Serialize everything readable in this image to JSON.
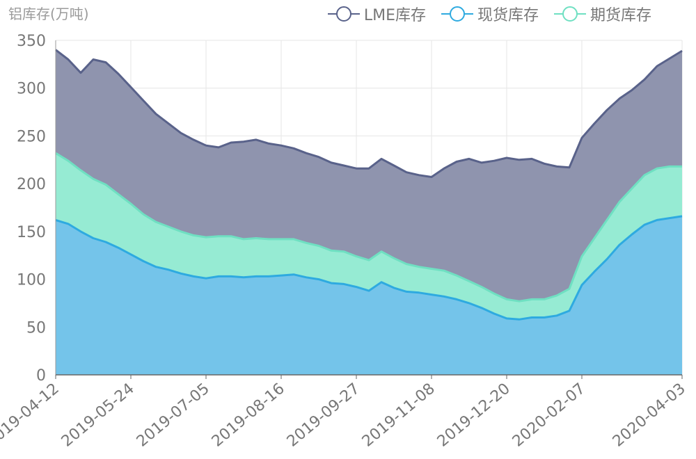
{
  "chart_data": {
    "type": "area",
    "ylabel": "铝库存(万吨)",
    "ylim": [
      0,
      350
    ],
    "yticks": [
      0,
      50,
      100,
      150,
      200,
      250,
      300,
      350
    ],
    "xticks": [
      "2019-04-12",
      "2019-05-24",
      "2019-07-05",
      "2019-08-16",
      "2019-09-27",
      "2019-11-08",
      "2019-12-20",
      "2020-02-07",
      "2020-04-03"
    ],
    "grid": true,
    "legend_position": "top-right",
    "colors": {
      "lme": "#59628a",
      "lme_fill": "#8f94ae",
      "spot": "#2eaae0",
      "spot_fill": "#74c4ea",
      "futures": "#6fe0c2",
      "futures_fill": "#96ebd3"
    },
    "x": [
      "2019-04-12",
      "2019-04-19",
      "2019-04-26",
      "2019-05-03",
      "2019-05-10",
      "2019-05-17",
      "2019-05-24",
      "2019-05-31",
      "2019-06-07",
      "2019-06-14",
      "2019-06-21",
      "2019-06-28",
      "2019-07-05",
      "2019-07-12",
      "2019-07-19",
      "2019-07-26",
      "2019-08-02",
      "2019-08-09",
      "2019-08-16",
      "2019-08-23",
      "2019-08-30",
      "2019-09-06",
      "2019-09-13",
      "2019-09-20",
      "2019-09-27",
      "2019-10-04",
      "2019-10-11",
      "2019-10-18",
      "2019-10-25",
      "2019-11-01",
      "2019-11-08",
      "2019-11-15",
      "2019-11-22",
      "2019-11-29",
      "2019-12-06",
      "2019-12-13",
      "2019-12-20",
      "2019-12-27",
      "2020-01-03",
      "2020-01-10",
      "2020-01-17",
      "2020-01-24",
      "2020-02-07",
      "2020-02-14",
      "2020-02-21",
      "2020-02-28",
      "2020-03-06",
      "2020-03-13",
      "2020-03-20",
      "2020-03-27",
      "2020-04-03"
    ],
    "series": [
      {
        "name": "LME库存",
        "key": "lme",
        "values": [
          340,
          330,
          316,
          330,
          327,
          315,
          301,
          287,
          273,
          263,
          253,
          246,
          240,
          238,
          243,
          244,
          246,
          242,
          240,
          237,
          232,
          228,
          222,
          219,
          216,
          216,
          226,
          219,
          212,
          209,
          207,
          216,
          223,
          226,
          222,
          224,
          227,
          225,
          226,
          221,
          218,
          217,
          248,
          263,
          277,
          289,
          298,
          309,
          323,
          331,
          339
        ]
      },
      {
        "name": "现货库存",
        "key": "spot",
        "values": [
          162,
          158,
          150,
          143,
          139,
          133,
          126,
          119,
          113,
          110,
          106,
          103,
          101,
          103,
          103,
          102,
          103,
          103,
          104,
          105,
          102,
          100,
          96,
          95,
          92,
          88,
          97,
          91,
          87,
          86,
          84,
          82,
          79,
          75,
          70,
          64,
          59,
          58,
          60,
          60,
          62,
          67,
          94,
          108,
          121,
          136,
          147,
          157,
          162,
          164,
          166
        ]
      },
      {
        "name": "期货库存",
        "key": "futures",
        "values": [
          232,
          224,
          214,
          205,
          199,
          189,
          179,
          168,
          160,
          155,
          150,
          146,
          144,
          145,
          145,
          142,
          143,
          142,
          142,
          142,
          138,
          135,
          130,
          129,
          124,
          120,
          129,
          122,
          116,
          113,
          111,
          109,
          104,
          98,
          92,
          85,
          79,
          77,
          79,
          79,
          83,
          90,
          124,
          143,
          162,
          181,
          195,
          209,
          216,
          218,
          218
        ]
      }
    ]
  }
}
